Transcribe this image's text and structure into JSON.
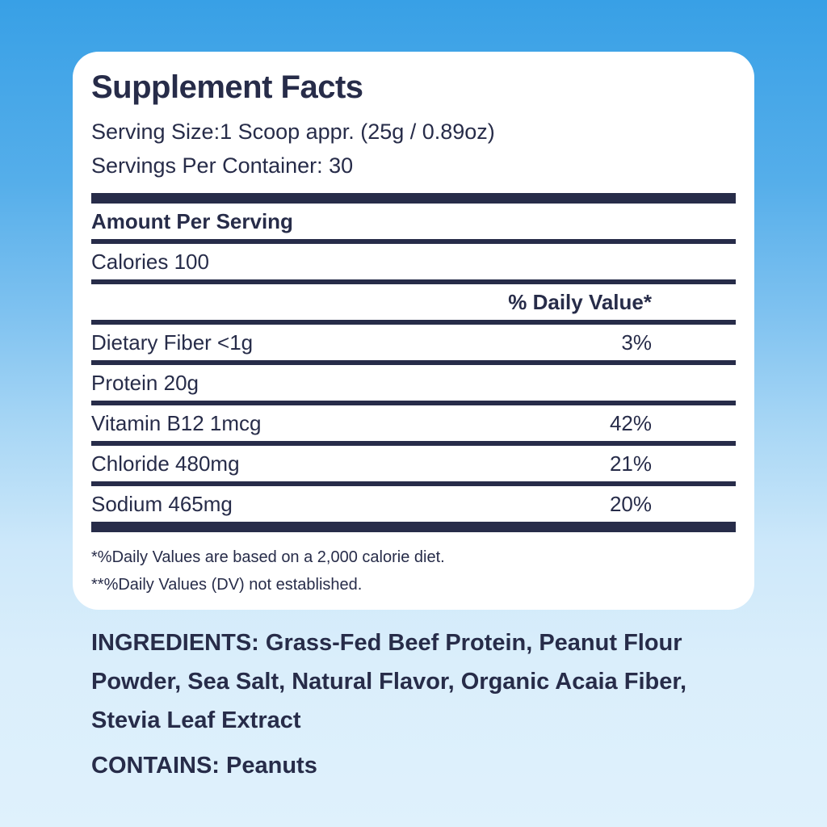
{
  "colors": {
    "navy": "#272c49",
    "background_top": "#38a0e6",
    "background_bottom": "#dff1fc",
    "card_background": "#ffffff"
  },
  "panel": {
    "title": "Supplement Facts",
    "serving_size": "Serving Size:1 Scoop appr. (25g / 0.89oz)",
    "servings_per_container": "Servings Per Container: 30",
    "amount_per_serving": "Amount Per Serving",
    "calories": "Calories 100",
    "daily_value_header": "% Daily Value*",
    "rows": [
      {
        "name": "Dietary Fiber <1g",
        "value": "3%"
      },
      {
        "name": "Protein 20g",
        "value": ""
      },
      {
        "name": "Vitamin B12 1mcg",
        "value": "42%"
      },
      {
        "name": "Chloride 480mg",
        "value": "21%"
      },
      {
        "name": "Sodium 465mg",
        "value": "20%"
      }
    ],
    "footnotes": [
      "*%Daily Values are based on a 2,000 calorie diet.",
      "**%Daily Values (DV) not established."
    ]
  },
  "ingredients": {
    "text": "INGREDIENTS: Grass-Fed Beef Protein, Peanut Flour Powder, Sea Salt, Natural Flavor, Organic Acaia Fiber, Stevia Leaf Extract"
  },
  "contains": {
    "text": "CONTAINS: Peanuts"
  }
}
